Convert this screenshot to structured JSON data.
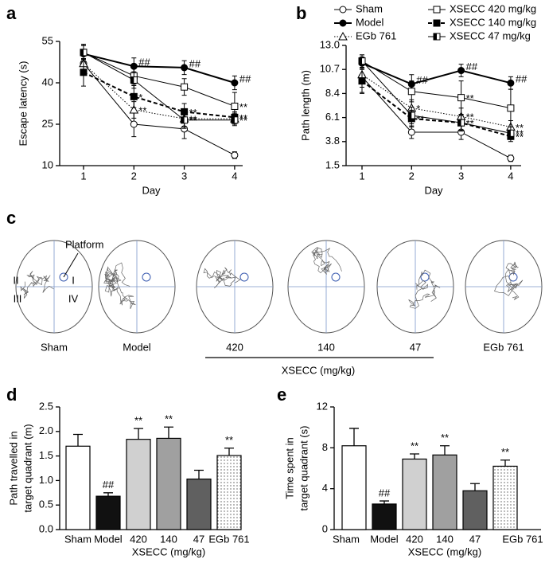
{
  "chart_data": [
    {
      "type": "line",
      "label": "a",
      "ylabel": "Escape latency (s)",
      "xlabel": "Day",
      "categories": [
        "1",
        "2",
        "3",
        "4"
      ],
      "ylim": [
        10,
        55
      ],
      "yticks": [
        10,
        25,
        40,
        55
      ],
      "series": [
        {
          "color": "#000000",
          "marker": "open-circle",
          "line_style": "solid",
          "values": [
            47,
            25,
            23.3,
            13.8
          ],
          "errors": [
            4,
            4.5,
            3.5,
            1.2
          ],
          "labels": [
            null,
            null,
            null,
            null
          ]
        },
        {
          "color": "#000000",
          "marker": "filled-circle",
          "line_style": "solid",
          "values": [
            50.5,
            46,
            45.5,
            40
          ],
          "errors": [
            3,
            3,
            2.5,
            2.5
          ],
          "labels": [
            null,
            "##",
            "##",
            "##"
          ]
        },
        {
          "color": "#000000",
          "marker": "open-triangle",
          "line_style": "dotted",
          "values": [
            47,
            30.2,
            27,
            27
          ],
          "errors": [
            3,
            3,
            3,
            2
          ],
          "labels": [
            null,
            "**",
            "**",
            null
          ]
        },
        {
          "color": "#000000",
          "marker": "open-square",
          "line_style": "solid",
          "values": [
            51,
            42.5,
            38.5,
            31.5
          ],
          "errors": [
            3,
            3,
            3,
            5
          ],
          "labels": [
            null,
            null,
            null,
            "**"
          ]
        },
        {
          "color": "#000000",
          "marker": "filled-square",
          "line_style": "dashed",
          "values": [
            43.8,
            35,
            29.5,
            27.5
          ],
          "errors": [
            5,
            4,
            3,
            2
          ],
          "labels": [
            null,
            "*",
            "**",
            "**"
          ]
        },
        {
          "color": "#000000",
          "marker": "half-square",
          "line_style": "solid",
          "values": [
            51,
            41,
            26.5,
            26.5
          ],
          "errors": [
            2.5,
            3,
            3,
            2
          ],
          "labels": [
            null,
            null,
            "**",
            "**"
          ]
        }
      ]
    },
    {
      "type": "line",
      "label": "b",
      "ylabel": "Path length (m)",
      "xlabel": "Day",
      "categories": [
        "1",
        "2",
        "3",
        "4"
      ],
      "ylim": [
        1.5,
        13
      ],
      "yticks": [
        1.5,
        3.8,
        6.1,
        8.4,
        10.7,
        {
          "value": 13,
          "label": "13.0"
        }
      ],
      "series": [
        {
          "name": "Sham",
          "color": "#000000",
          "marker": "open-circle",
          "line_style": "solid",
          "values": [
            10,
            4.7,
            4.7,
            2.2
          ],
          "errors": [
            1.5,
            0.6,
            0.7,
            0.3
          ],
          "labels": [
            null,
            null,
            null,
            null
          ]
        },
        {
          "name": "Model",
          "color": "#000000",
          "marker": "filled-circle",
          "line_style": "solid",
          "values": [
            11.3,
            9.3,
            10.6,
            9.4
          ],
          "errors": [
            0.6,
            0.9,
            0.6,
            0.6
          ],
          "labels": [
            null,
            "##",
            "##",
            "##"
          ]
        },
        {
          "name": "EGb 761",
          "color": "#000000",
          "marker": "open-triangle",
          "line_style": "dotted",
          "values": [
            10.2,
            7,
            6.2,
            5.2
          ],
          "errors": [
            1.2,
            0.8,
            0.8,
            0.6
          ],
          "labels": [
            null,
            "*",
            "**",
            "**"
          ]
        },
        {
          "name": "XSECC 420 mg/kg",
          "color": "#000000",
          "marker": "open-square",
          "line_style": "solid",
          "values": [
            11.5,
            8.6,
            8,
            7
          ],
          "errors": [
            0.6,
            1,
            1.6,
            1.8
          ],
          "labels": [
            null,
            null,
            "**",
            null
          ]
        },
        {
          "name": "XSECC 140 mg/kg",
          "color": "#000000",
          "marker": "filled-square",
          "line_style": "dashed",
          "values": [
            9.6,
            6,
            5.6,
            4.3
          ],
          "errors": [
            1.2,
            0.8,
            0.7,
            0.5
          ],
          "labels": [
            null,
            "**",
            "**",
            "**"
          ]
        },
        {
          "name": "XSECC 47 mg/kg",
          "color": "#000000",
          "marker": "half-square",
          "line_style": "solid",
          "values": [
            11.5,
            6.3,
            5.6,
            4.6
          ],
          "errors": [
            0.6,
            0.8,
            0.8,
            0.6
          ],
          "labels": [
            null,
            null,
            null,
            "**"
          ]
        }
      ]
    },
    {
      "type": "bar",
      "label": "d",
      "ylabel": [
        "Path travelled in",
        "target quadrant (m)"
      ],
      "group_label": "XSECC (mg/kg)",
      "categories": [
        "Sham",
        "Model",
        "420",
        "140",
        "47",
        "EGb 761"
      ],
      "values": [
        1.7,
        0.68,
        1.84,
        1.86,
        1.03,
        1.51
      ],
      "errors": [
        0.24,
        0.07,
        0.22,
        0.23,
        0.18,
        0.15
      ],
      "labels": [
        null,
        "##",
        "**",
        "**",
        null,
        "**"
      ],
      "colors": [
        "#ffffff",
        "#111111",
        "#d0d0d0",
        "#a0a0a0",
        "#606060",
        "#ffffff"
      ],
      "patterns": [
        null,
        null,
        null,
        null,
        null,
        "dots"
      ],
      "ylim": [
        0,
        2.5
      ],
      "yticks": [
        {
          "value": 0,
          "label": "0.0"
        },
        0.5,
        {
          "value": 1,
          "label": "1.0"
        },
        1.5,
        {
          "value": 2,
          "label": "2.0"
        },
        2.5
      ]
    },
    {
      "type": "bar",
      "label": "e",
      "ylabel": [
        "Time spent in",
        "target quadrant (s)"
      ],
      "group_label": "XSECC (mg/kg)",
      "categories": [
        "Sham",
        "Model",
        "420",
        "140",
        "47",
        "EGb 761"
      ],
      "values": [
        8.2,
        2.5,
        6.9,
        7.3,
        3.8,
        6.2
      ],
      "errors": [
        1.7,
        0.3,
        0.5,
        0.9,
        0.7,
        0.6
      ],
      "labels": [
        null,
        "##",
        "**",
        "**",
        null,
        "**"
      ],
      "colors": [
        "#ffffff",
        "#111111",
        "#d0d0d0",
        "#a0a0a0",
        "#606060",
        "#ffffff"
      ],
      "patterns": [
        null,
        null,
        null,
        null,
        null,
        "dots"
      ],
      "ylim": [
        0,
        12
      ],
      "yticks": [
        0,
        4,
        8,
        12
      ]
    }
  ],
  "panel_c": {
    "label": "c",
    "platform": "Platform",
    "quadrants": [
      "I",
      "II",
      "III",
      "IV"
    ],
    "groups": [
      "Sham",
      "Model",
      "420",
      "140",
      "47",
      "EGb 761"
    ],
    "group_label": "XSECC (mg/kg)"
  }
}
